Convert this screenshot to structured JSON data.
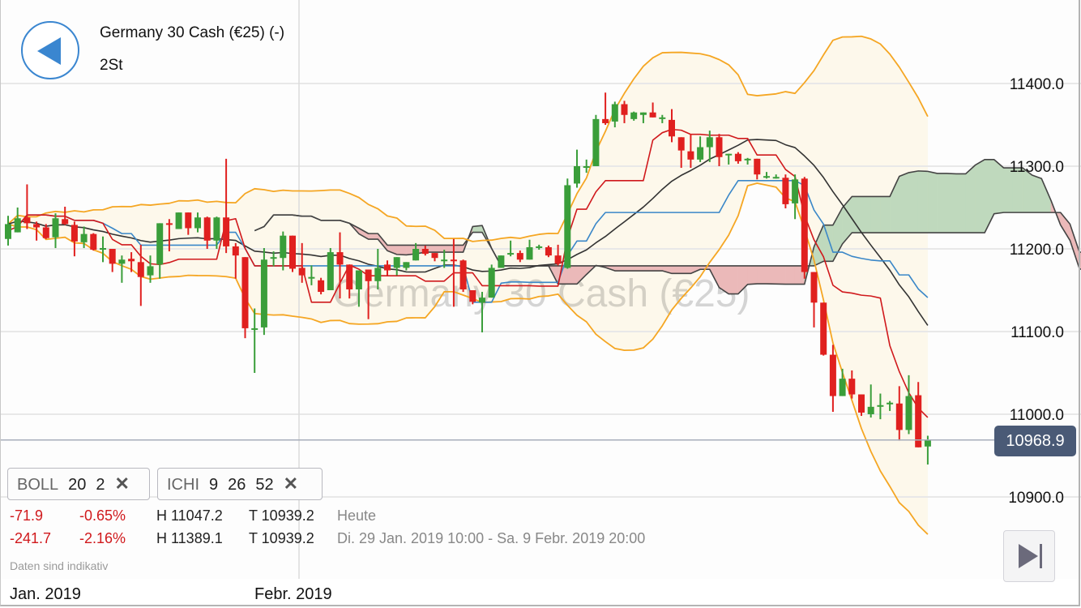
{
  "header": {
    "instrument": "Germany 30 Cash (€25) (-)",
    "timeframe": "2St",
    "back_icon": "back-triangle-icon"
  },
  "watermark": "Germany 30 Cash (€25)",
  "indicators": [
    {
      "name": "BOLL",
      "params": [
        "20",
        "2"
      ],
      "remove_icon": "close-x-icon"
    },
    {
      "name": "ICHI",
      "params": [
        "9",
        "26",
        "52"
      ],
      "remove_icon": "close-x-icon"
    }
  ],
  "stats": [
    {
      "change": "-71.9",
      "change_pct": "-0.65%",
      "high": "H 11047.2",
      "low": "T 10939.2",
      "period": "Heute"
    },
    {
      "change": "-241.7",
      "change_pct": "-2.16%",
      "high": "H 11389.1",
      "low": "T 10939.2",
      "period": "Di. 29 Jan. 2019 10:00 - Sa. 9 Febr. 2019 20:00"
    }
  ],
  "disclaimer": "Daten sind indikativ",
  "last_price": "10968.9",
  "skip_to_end_icon": "skip-to-end-icon",
  "colors": {
    "up": "#3a9e3a",
    "down": "#e0201f",
    "boll_band": "#f5a623",
    "boll_mid": "#333333",
    "tenkan": "#d0191c",
    "kijun": "#3a87c8",
    "cloud_up": "#bfd9bd",
    "cloud_down": "#ebb9b9",
    "price_tag": "#4a5a76"
  },
  "chart_data": {
    "type": "candlestick",
    "ylim": [
      10860,
      11470
    ],
    "y_ticks": [
      "11400.0",
      "11300.0",
      "11200.0",
      "11100.0",
      "11000.0",
      "10900.0"
    ],
    "y_tick_values": [
      11400,
      11300,
      11200,
      11100,
      11000,
      10900
    ],
    "x_labels": [
      {
        "label": "Jan. 2019",
        "index": 0
      },
      {
        "label": "Febr. 2019",
        "index": 31
      }
    ],
    "grid": "horizontal",
    "overlays": [
      "Bollinger(20,2)",
      "Ichimoku(9,26,52)"
    ],
    "candles_ohlc": [
      [
        11212,
        11240,
        11204,
        11230
      ],
      [
        11220,
        11250,
        11220,
        11237
      ],
      [
        11238,
        11278,
        11224,
        11231
      ],
      [
        11230,
        11233,
        11210,
        11226
      ],
      [
        11226,
        11230,
        11212,
        11213
      ],
      [
        11214,
        11243,
        11201,
        11237
      ],
      [
        11236,
        11251,
        11229,
        11230
      ],
      [
        11229,
        11233,
        11191,
        11209
      ],
      [
        11208,
        11227,
        11201,
        11218
      ],
      [
        11218,
        11219,
        11198,
        11199
      ],
      [
        11199,
        11215,
        11184,
        11201
      ],
      [
        11200,
        11200,
        11172,
        11182
      ],
      [
        11182,
        11192,
        11159,
        11187
      ],
      [
        11188,
        11196,
        11172,
        11185
      ],
      [
        11184,
        11205,
        11131,
        11166
      ],
      [
        11168,
        11192,
        11159,
        11179
      ],
      [
        11181,
        11231,
        11164,
        11231
      ],
      [
        11231,
        11236,
        11197,
        11230
      ],
      [
        11224,
        11244,
        11224,
        11244
      ],
      [
        11244,
        11244,
        11217,
        11225
      ],
      [
        11225,
        11244,
        11220,
        11238
      ],
      [
        11238,
        11239,
        11200,
        11210
      ],
      [
        11210,
        11239,
        11200,
        11238
      ],
      [
        11238,
        11309,
        11195,
        11203
      ],
      [
        11203,
        11207,
        11164,
        11192
      ],
      [
        11190,
        11190,
        11092,
        11104
      ],
      [
        11104,
        11128,
        11050,
        11104
      ],
      [
        11105,
        11201,
        11096,
        11187
      ],
      [
        11189,
        11197,
        11179,
        11190
      ],
      [
        11189,
        11221,
        11174,
        11216
      ],
      [
        11216,
        11216,
        11172,
        11176
      ],
      [
        11177,
        11207,
        11159,
        11168
      ],
      [
        11166,
        11180,
        11156,
        11166
      ],
      [
        11162,
        11165,
        11145,
        11148
      ],
      [
        11150,
        11201,
        11150,
        11196
      ],
      [
        11196,
        11220,
        11140,
        11181
      ],
      [
        11181,
        11181,
        11140,
        11151
      ],
      [
        11151,
        11174,
        11130,
        11174
      ],
      [
        11175,
        11175,
        11115,
        11161
      ],
      [
        11161,
        11200,
        11151,
        11177
      ],
      [
        11181,
        11186,
        11168,
        11174
      ],
      [
        11177,
        11190,
        11168,
        11190
      ],
      [
        11177,
        11184,
        11174,
        11184
      ],
      [
        11186,
        11207,
        11186,
        11200
      ],
      [
        11200,
        11204,
        11192,
        11194
      ],
      [
        11195,
        11195,
        11185,
        11189
      ],
      [
        11187,
        11199,
        11177,
        11187
      ],
      [
        11187,
        11212,
        11130,
        11186
      ],
      [
        11186,
        11187,
        11148,
        11151
      ],
      [
        11150,
        11150,
        11133,
        11136
      ],
      [
        11135,
        11148,
        11099,
        11141
      ],
      [
        11141,
        11181,
        11141,
        11177
      ],
      [
        11177,
        11192,
        11177,
        11192
      ],
      [
        11194,
        11210,
        11191,
        11195
      ],
      [
        11195,
        11198,
        11184,
        11187
      ],
      [
        11187,
        11211,
        11187,
        11202
      ],
      [
        11203,
        11205,
        11199,
        11203
      ],
      [
        11202,
        11204,
        11190,
        11192
      ],
      [
        11192,
        11205,
        11180,
        11182
      ],
      [
        11177,
        11285,
        11176,
        11277
      ],
      [
        11279,
        11320,
        11274,
        11300
      ],
      [
        11300,
        11308,
        11292,
        11300
      ],
      [
        11300,
        11362,
        11300,
        11357
      ],
      [
        11357,
        11389,
        11350,
        11352
      ],
      [
        11354,
        11378,
        11347,
        11375
      ],
      [
        11375,
        11379,
        11352,
        11362
      ],
      [
        11357,
        11366,
        11355,
        11365
      ],
      [
        11362,
        11365,
        11352,
        11365
      ],
      [
        11365,
        11377,
        11359,
        11359
      ],
      [
        11359,
        11362,
        11352,
        11359
      ],
      [
        11356,
        11369,
        11329,
        11336
      ],
      [
        11335,
        11335,
        11298,
        11319
      ],
      [
        11318,
        11339,
        11298,
        11308
      ],
      [
        11308,
        11336,
        11305,
        11323
      ],
      [
        11323,
        11343,
        11305,
        11335
      ],
      [
        11335,
        11339,
        11300,
        11311
      ],
      [
        11314,
        11315,
        11302,
        11315
      ],
      [
        11315,
        11317,
        11303,
        11306
      ],
      [
        11308,
        11310,
        11302,
        11309
      ],
      [
        11309,
        11309,
        11284,
        11290
      ],
      [
        11288,
        11293,
        11285,
        11288
      ],
      [
        11287,
        11290,
        11285,
        11287
      ],
      [
        11286,
        11290,
        11249,
        11254
      ],
      [
        11255,
        11290,
        11236,
        11284
      ],
      [
        11285,
        11287,
        11164,
        11172
      ],
      [
        11172,
        11172,
        11105,
        11135
      ],
      [
        11135,
        11135,
        11071,
        11072
      ],
      [
        11072,
        11084,
        11003,
        11022
      ],
      [
        11022,
        11055,
        11022,
        11043
      ],
      [
        11043,
        11053,
        11019,
        11024
      ],
      [
        11024,
        11024,
        10998,
        11002
      ],
      [
        11000,
        11036,
        10996,
        11009
      ],
      [
        11011,
        11025,
        10994,
        11011
      ],
      [
        11012,
        11016,
        11004,
        11014
      ],
      [
        11013,
        11034,
        10968,
        10981
      ],
      [
        10981,
        11047.2,
        10976,
        11022
      ],
      [
        11023,
        11039,
        10960,
        10960
      ],
      [
        10961,
        10974,
        10939.2,
        10968.9
      ]
    ]
  }
}
